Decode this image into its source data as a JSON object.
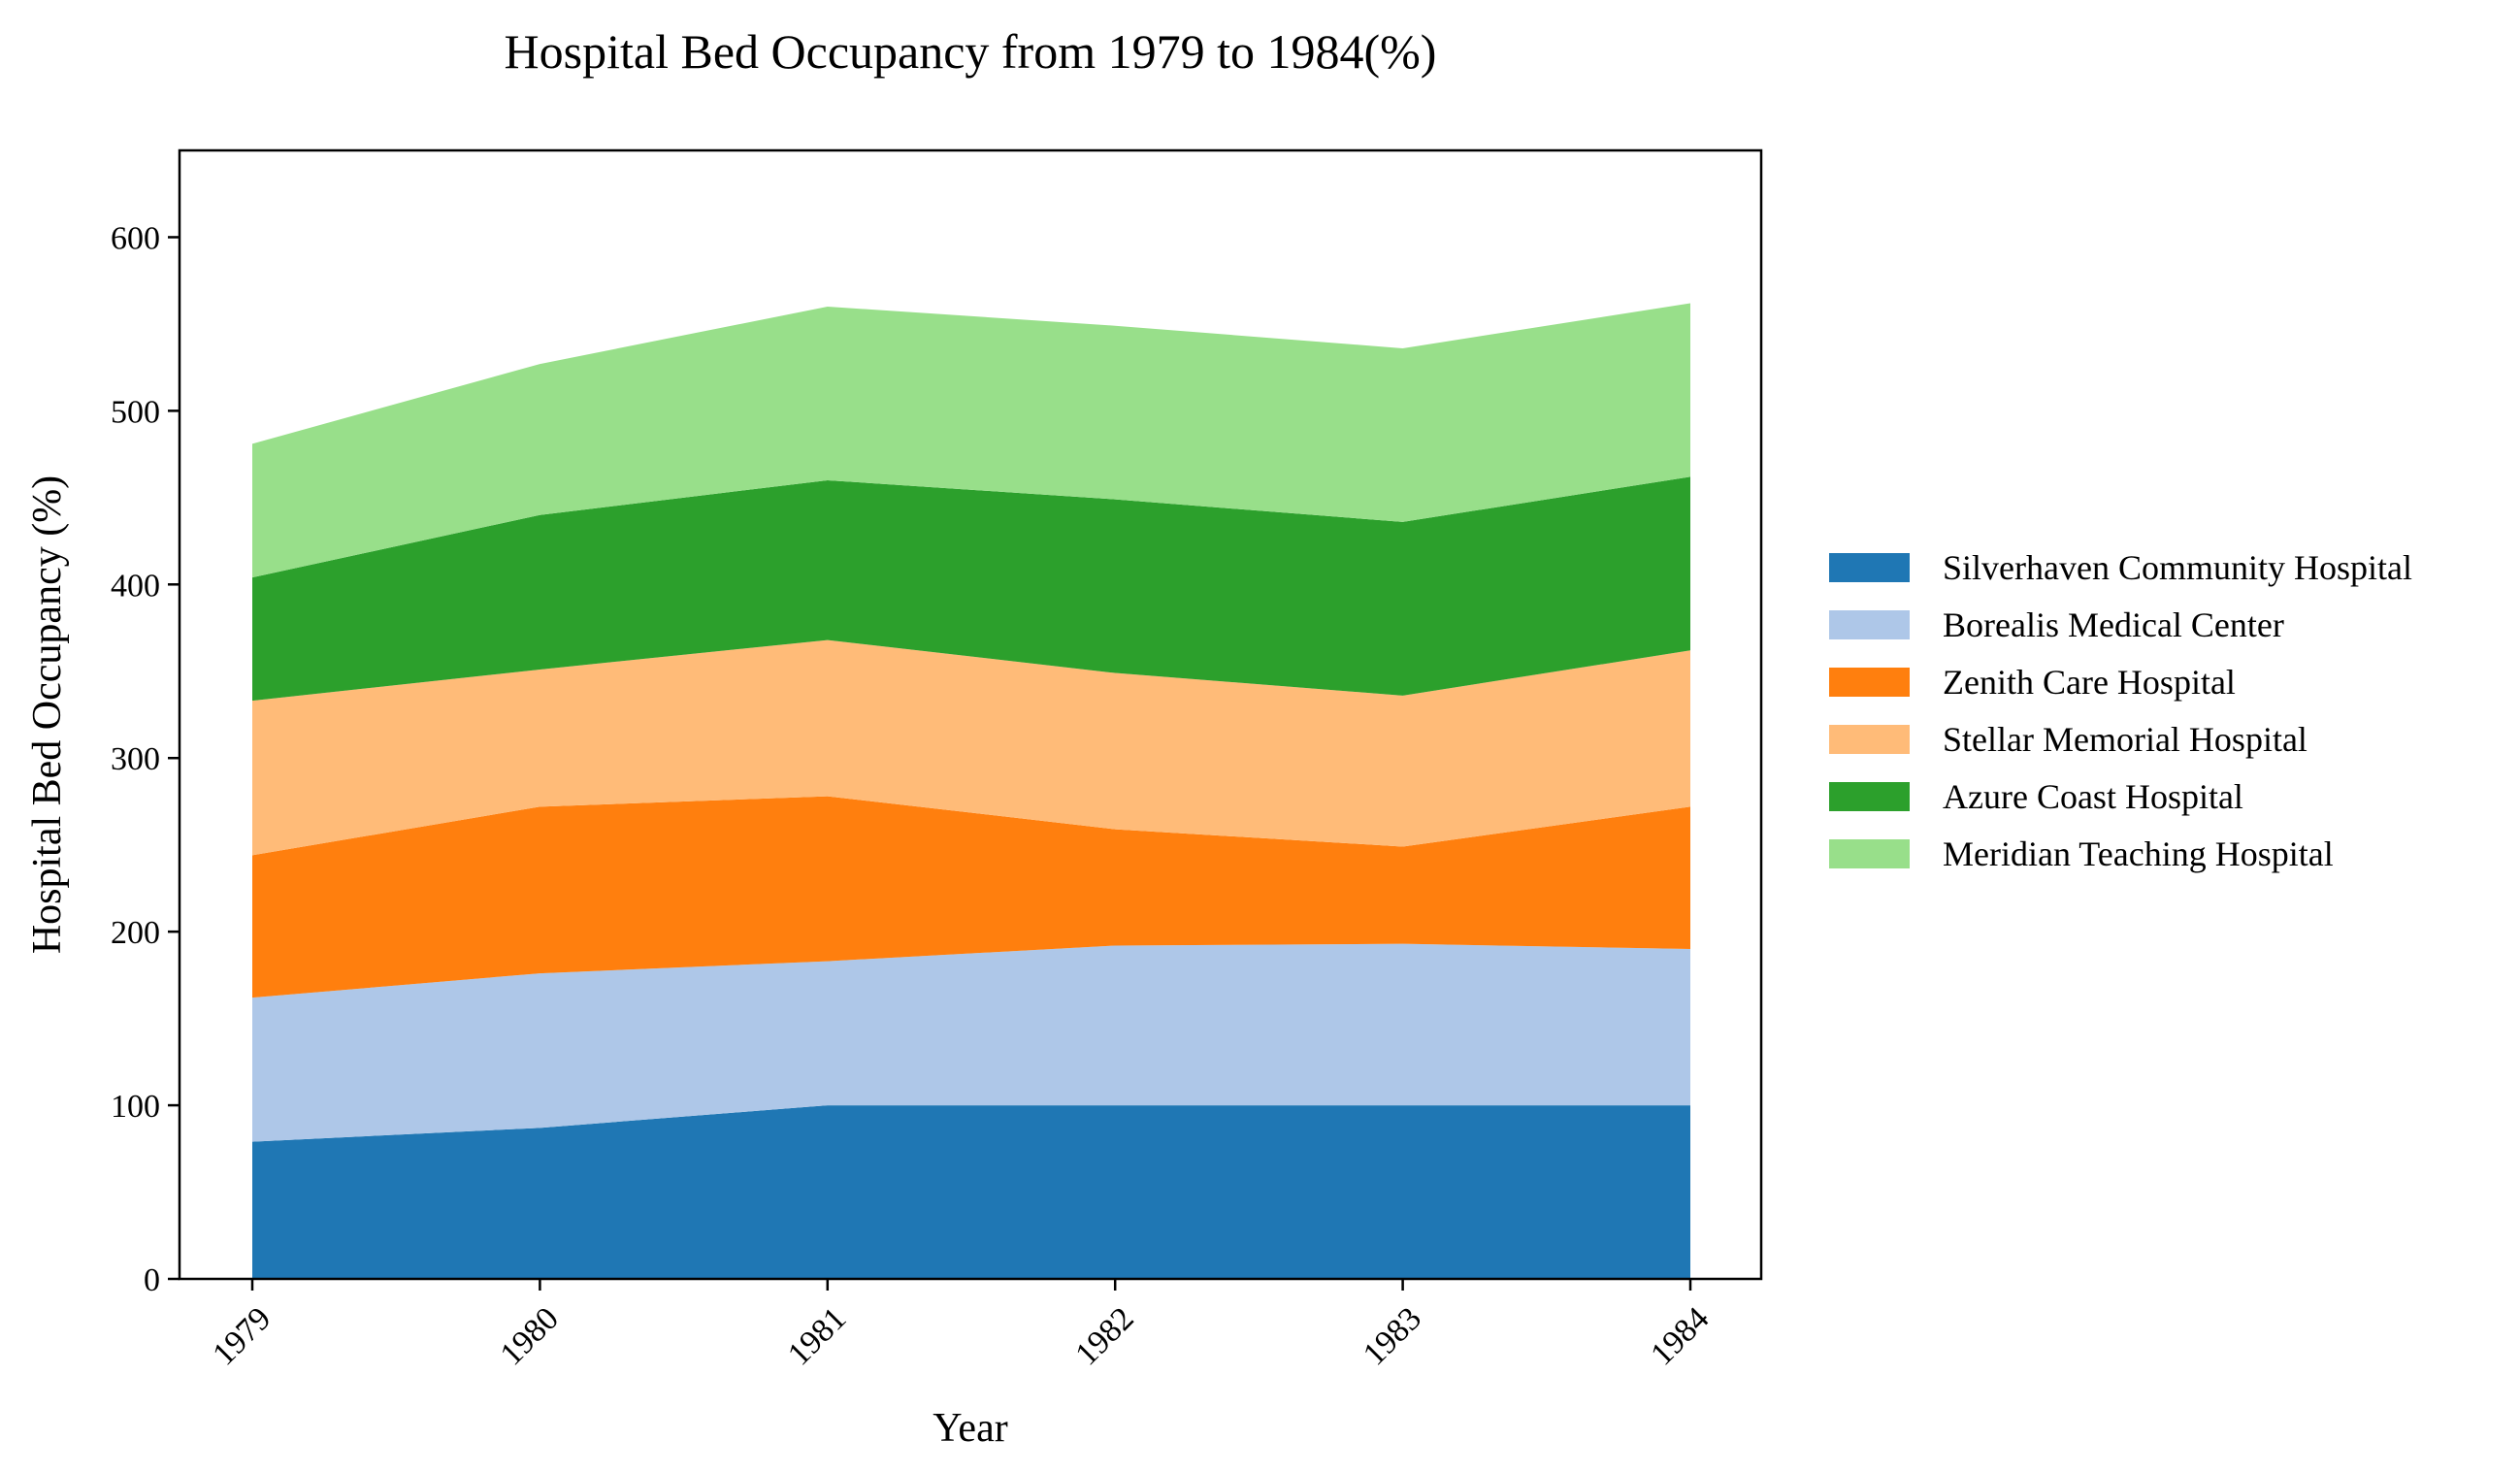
{
  "chart_data": {
    "type": "area",
    "stacked": true,
    "title": "Hospital Bed Occupancy from 1979 to 1984(%)",
    "xlabel": "Year",
    "ylabel": "Hospital Bed Occupancy (%)",
    "categories": [
      "1979",
      "1980",
      "1981",
      "1982",
      "1983",
      "1984"
    ],
    "ylim": [
      0,
      650
    ],
    "yticks": [
      0,
      100,
      200,
      300,
      400,
      500,
      600
    ],
    "grid": false,
    "legend_position": "right",
    "series": [
      {
        "name": "Silverhaven Community Hospital",
        "color": "#1f77b4",
        "values": [
          79,
          87,
          100,
          100,
          100,
          100
        ]
      },
      {
        "name": "Borealis Medical Center",
        "color": "#aec7e8",
        "values": [
          83,
          89,
          83,
          92,
          93,
          90
        ]
      },
      {
        "name": "Zenith Care Hospital",
        "color": "#ff7f0e",
        "values": [
          82,
          96,
          95,
          67,
          56,
          82
        ]
      },
      {
        "name": "Stellar Memorial Hospital",
        "color": "#ffbb78",
        "values": [
          89,
          79,
          90,
          90,
          87,
          90
        ]
      },
      {
        "name": "Azure Coast Hospital",
        "color": "#2ca02c",
        "values": [
          71,
          89,
          92,
          100,
          100,
          100
        ]
      },
      {
        "name": "Meridian Teaching Hospital",
        "color": "#98df8a",
        "values": [
          77,
          87,
          100,
          100,
          100,
          100
        ]
      }
    ]
  }
}
